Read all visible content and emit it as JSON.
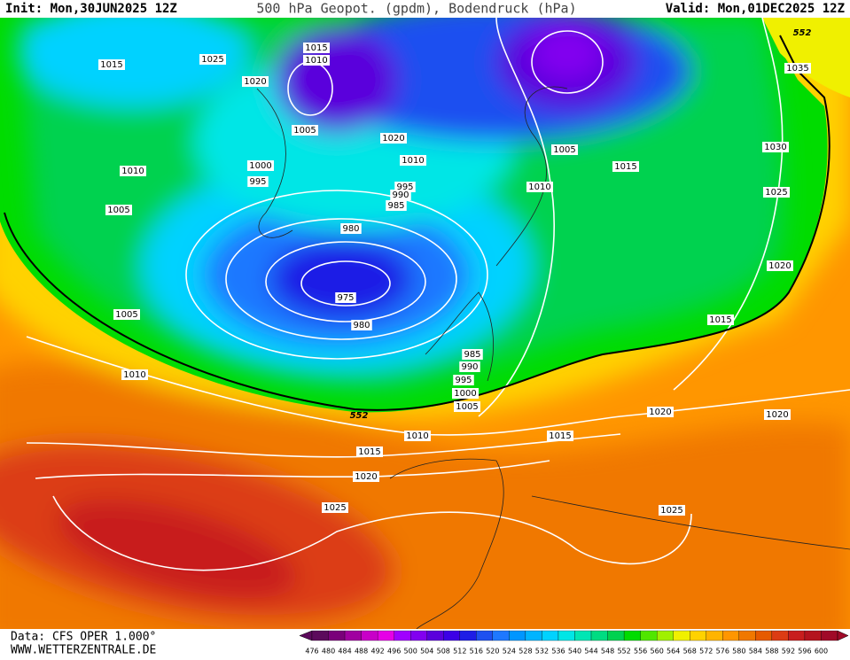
{
  "header": {
    "init": "Init: Mon,30JUN2025 12Z",
    "title": "500 hPa Geopot. (gpdm), Bodendruck (hPa)",
    "valid": "Valid: Mon,01DEC2025 12Z"
  },
  "footer": {
    "data_source": "Data: CFS OPER 1.000°",
    "website": "WWW.WETTERZENTRALE.DE"
  },
  "contour_labels": [
    "1015",
    "1025",
    "1015",
    "1010",
    "1020",
    "1005",
    "1020",
    "1010",
    "1000",
    "995",
    "1010",
    "995",
    "990",
    "985",
    "1005",
    "980",
    "975",
    "980",
    "1005",
    "1010",
    "985",
    "990",
    "995",
    "1000",
    "1005",
    "552",
    "1010",
    "1015",
    "1020",
    "1025",
    "1015",
    "1020",
    "1020",
    "1025",
    "1005",
    "1015",
    "1010",
    "1030",
    "1025",
    "1020",
    "1015",
    "1035",
    "552"
  ],
  "legend": {
    "labels": [
      476,
      480,
      484,
      488,
      492,
      496,
      500,
      504,
      508,
      512,
      516,
      520,
      524,
      528,
      532,
      536,
      540,
      544,
      548,
      552,
      556,
      560,
      564,
      568,
      572,
      576,
      580,
      584,
      588,
      592,
      596,
      600
    ],
    "colors": [
      "#5c0a5c",
      "#7a007a",
      "#a000a0",
      "#c800c8",
      "#e600e6",
      "#a000ff",
      "#8200f0",
      "#5a00dc",
      "#3c00e6",
      "#1e1ee6",
      "#1e50f0",
      "#1e78ff",
      "#0096ff",
      "#00b4ff",
      "#00d2ff",
      "#00e6e6",
      "#00e6b4",
      "#00dc82",
      "#00d250",
      "#00dc00",
      "#50e600",
      "#a0f000",
      "#f0f000",
      "#ffd200",
      "#ffb400",
      "#ff9600",
      "#f07800",
      "#e65a00",
      "#dc3c14",
      "#c81e1e",
      "#b4141e",
      "#a00a28"
    ]
  }
}
